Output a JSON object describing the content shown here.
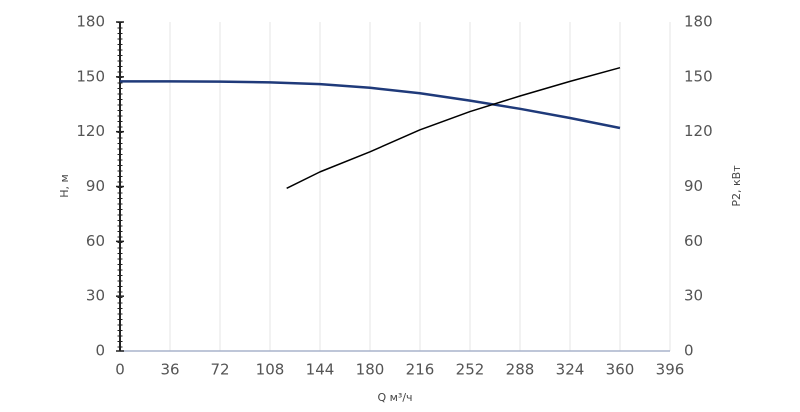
{
  "chart_data": {
    "type": "line",
    "xlabel": "Q м³/ч",
    "ylabel": "H, м",
    "y2label": "P2, кВт",
    "xlim": [
      0,
      396
    ],
    "xticks": [
      0,
      36,
      72,
      108,
      144,
      180,
      216,
      252,
      288,
      324,
      360,
      396
    ],
    "ylim": [
      0,
      180
    ],
    "yticks": [
      0,
      30,
      60,
      90,
      120,
      150,
      180
    ],
    "y2lim": [
      0,
      180
    ],
    "y2ticks": [
      0,
      30,
      60,
      90,
      120,
      150,
      180
    ],
    "grid": "x",
    "series": [
      {
        "color": "#1f3a7a",
        "x": [
          0,
          36,
          72,
          108,
          144,
          180,
          216,
          252,
          288,
          324,
          360
        ],
        "values": [
          147.5,
          147.5,
          147.4,
          147,
          146,
          144,
          141,
          137,
          132.5,
          127.5,
          122
        ]
      },
      {
        "color": "#000000",
        "axis": "y2",
        "x": [
          120,
          144,
          180,
          216,
          252,
          288,
          324,
          360
        ],
        "values": [
          89,
          98,
          109,
          121,
          131,
          139.5,
          147.5,
          155
        ]
      }
    ]
  }
}
